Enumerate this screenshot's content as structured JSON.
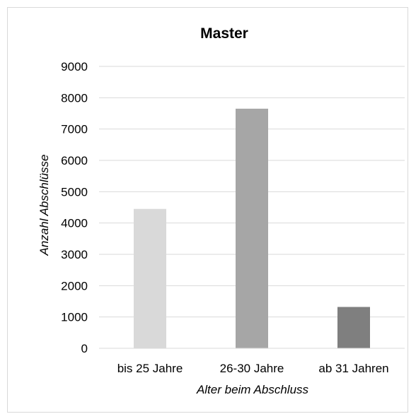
{
  "chart_data": {
    "type": "bar",
    "title": "Master",
    "categories": [
      "bis 25 Jahre",
      "26-30 Jahre",
      "ab 31 Jahren"
    ],
    "values": [
      4450,
      7650,
      1320
    ],
    "bar_colors": [
      "#d9d9d9",
      "#a6a6a6",
      "#7f7f7f"
    ],
    "xlabel": "Alter beim Abschluss",
    "ylabel": "Anzahl Abschlüsse",
    "ylim": [
      0,
      9000
    ],
    "ytick_step": 1000,
    "grid": true,
    "legend": "none"
  }
}
